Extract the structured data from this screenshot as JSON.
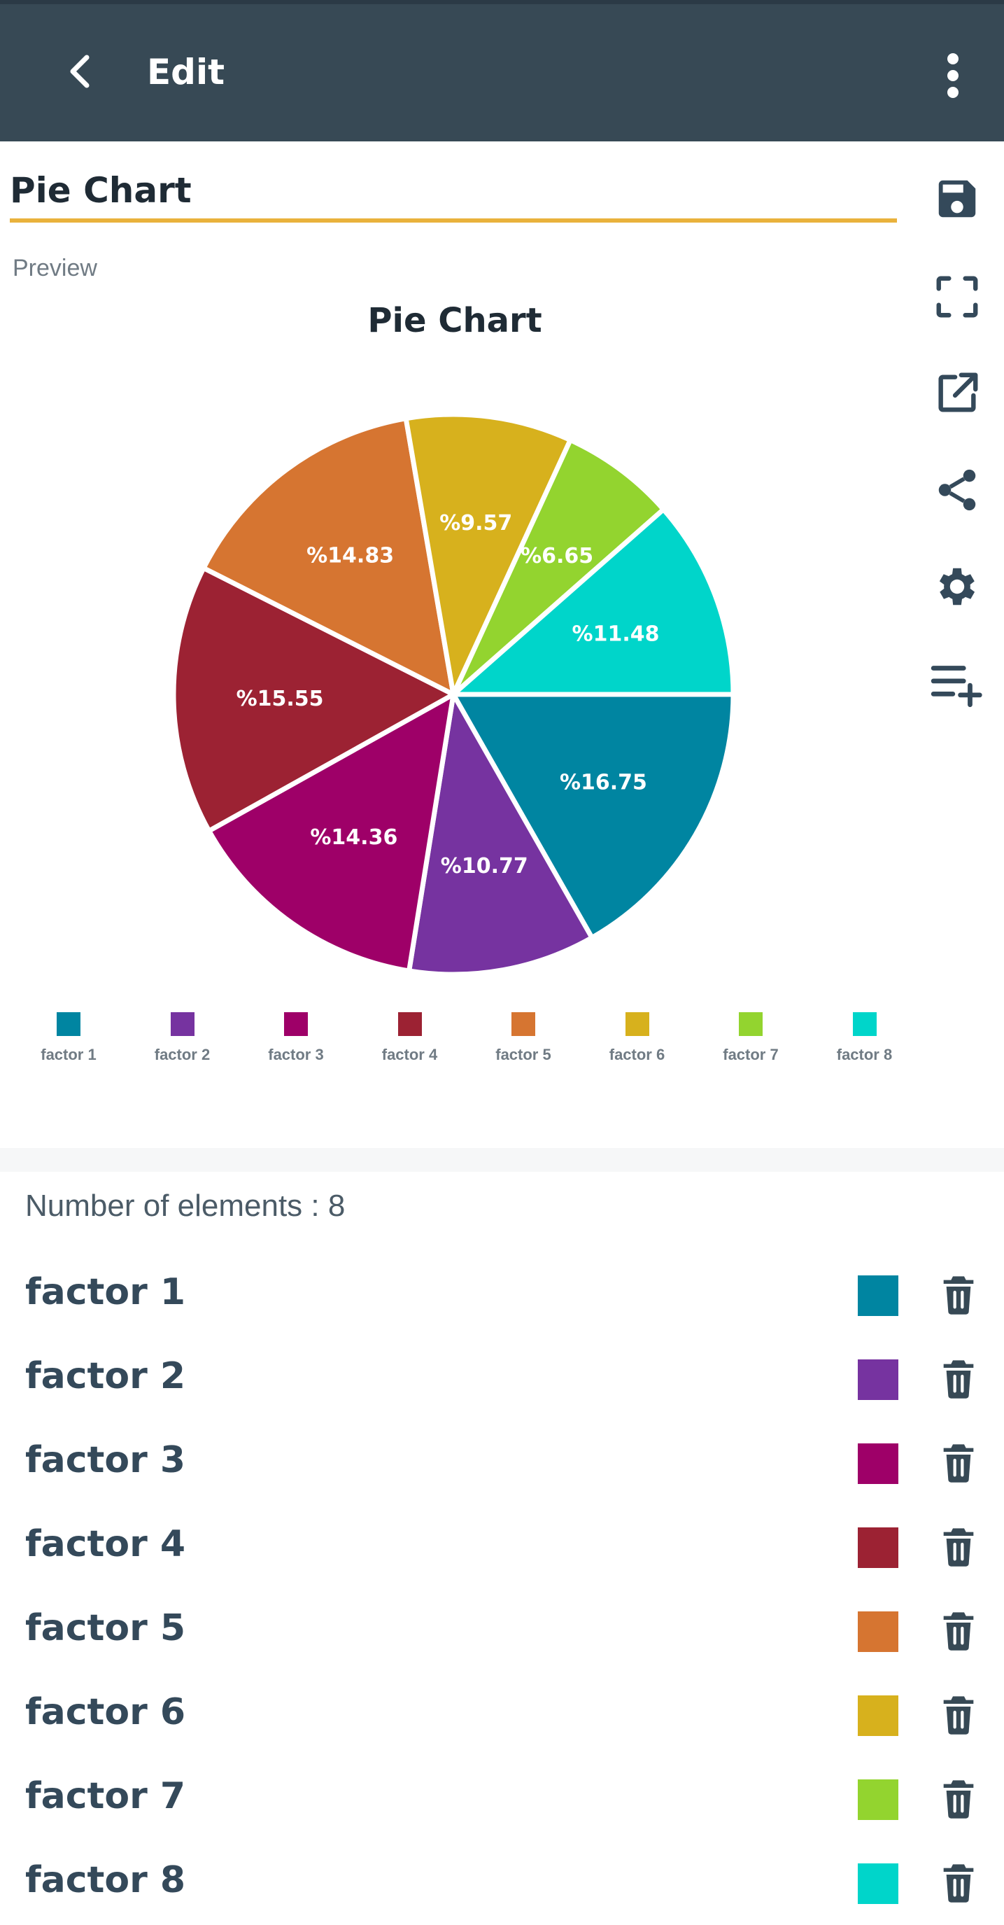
{
  "appbar": {
    "title": "Edit",
    "back_icon": "chevron-left-icon",
    "more_icon": "more-vert-icon"
  },
  "editor": {
    "title_value": "Pie Chart",
    "preview_label": "Preview"
  },
  "tools": [
    "save-icon",
    "fullscreen-icon",
    "open-external-icon",
    "share-icon",
    "settings-icon",
    "add-item-icon"
  ],
  "chart_data": {
    "type": "pie",
    "title": "Pie Chart",
    "categories": [
      "factor 1",
      "factor 2",
      "factor 3",
      "factor 4",
      "factor 5",
      "factor 6",
      "factor 7",
      "factor 8"
    ],
    "values": [
      16.75,
      10.77,
      14.36,
      15.55,
      14.83,
      9.57,
      6.65,
      11.48
    ],
    "labels": [
      "%16.75",
      "%10.77",
      "%14.36",
      "%15.55",
      "%14.83",
      "%9.57",
      "%6.65",
      "%11.48"
    ],
    "colors": [
      "#0085a1",
      "#7633a0",
      "#9e0068",
      "#9c2233",
      "#d67531",
      "#d7b11d",
      "#93d42f",
      "#00d5ca"
    ],
    "legend_position": "bottom"
  },
  "list": {
    "count_label": "Number of elements : 8",
    "items": [
      {
        "name": "factor 1",
        "color": "#0085a1"
      },
      {
        "name": "factor 2",
        "color": "#7633a0"
      },
      {
        "name": "factor 3",
        "color": "#9e0068"
      },
      {
        "name": "factor 4",
        "color": "#9c2233"
      },
      {
        "name": "factor 5",
        "color": "#d67531"
      },
      {
        "name": "factor 6",
        "color": "#d7b11d"
      },
      {
        "name": "factor 7",
        "color": "#93d42f"
      },
      {
        "name": "factor 8",
        "color": "#00d5ca"
      }
    ]
  },
  "colors": {
    "appbar": "#374955",
    "accent": "#e9b23c",
    "icon": "#34495a"
  }
}
